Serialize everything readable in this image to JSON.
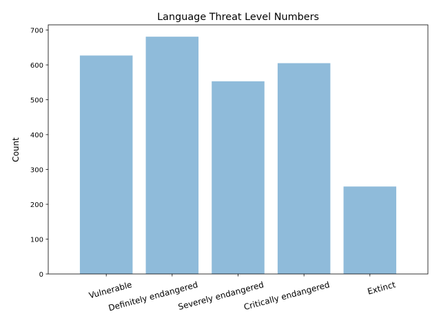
{
  "chart_data": {
    "type": "bar",
    "title": "Language Threat Level Numbers",
    "xlabel": "",
    "ylabel": "Count",
    "categories": [
      "Vulnerable",
      "Definitely endangered",
      "Severely endangered",
      "Critically endangered",
      "Extinct"
    ],
    "values": [
      627,
      681,
      553,
      605,
      251
    ],
    "ylim": [
      0,
      715
    ],
    "yticks": [
      0,
      100,
      200,
      300,
      400,
      500,
      600,
      700
    ],
    "bar_color": "#8fbbda",
    "grid": false,
    "legend": "none"
  }
}
